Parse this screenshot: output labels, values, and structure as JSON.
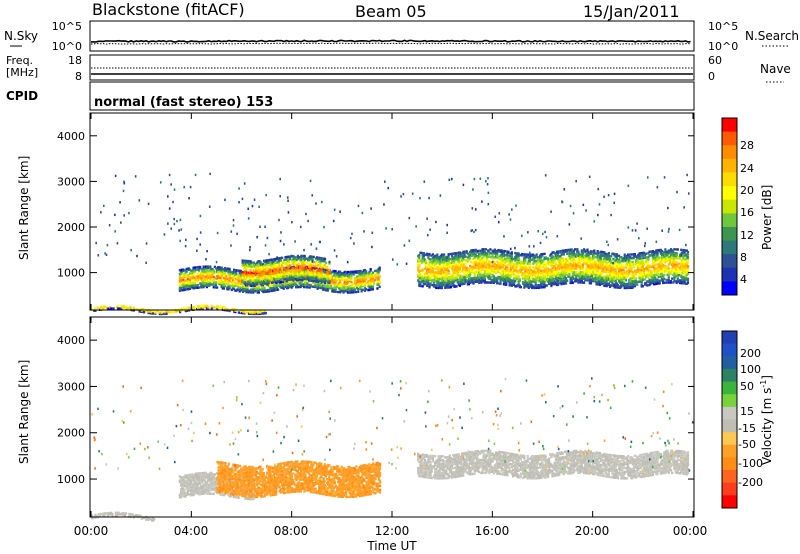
{
  "header": {
    "station": "Blackstone (fitACF)",
    "beam": "Beam 05",
    "date": "15/Jan/2011"
  },
  "sky_panel": {
    "left_label": "N.Sky",
    "right_label": "N.Search",
    "left_ticks": [
      "10^5",
      "10^0"
    ],
    "right_ticks": [
      "10^5",
      "10^0"
    ]
  },
  "freq_panel": {
    "left_label_1": "Freq.",
    "left_label_2": "[MHz]",
    "right_label": "Nave",
    "left_ticks": [
      "18",
      "8"
    ],
    "right_ticks": [
      "60",
      "0"
    ]
  },
  "cpid_panel": {
    "label": "CPID",
    "text": "normal (fast stereo) 153"
  },
  "x_axis": {
    "ticks": [
      "00:00",
      "04:00",
      "08:00",
      "12:00",
      "16:00",
      "20:00",
      "00:00"
    ],
    "label": "Time UT"
  },
  "power_panel": {
    "ylabel": "Slant Range [km]",
    "colorbar_label": "Power [dB]",
    "colorbar_ticks": [
      "28",
      "24",
      "20",
      "16",
      "12",
      "8",
      "4"
    ],
    "colors": [
      "#ff0000",
      "#ff5a00",
      "#ff8c00",
      "#ffb400",
      "#ffdc00",
      "#ffff00",
      "#c8e600",
      "#6ec83c",
      "#3c9650",
      "#2d7878",
      "#2d5096",
      "#1e32b4",
      "#0000ff"
    ]
  },
  "velocity_panel": {
    "ylabel": "Slant Range [km]",
    "colorbar_label": "Velocity [m s",
    "colorbar_sup": "-1",
    "colorbar_label_end": "]",
    "colorbar_ticks": [
      "200",
      "100",
      "50",
      "15",
      "-15",
      "-50",
      "-100",
      "-200"
    ],
    "colors": [
      "#2040b4",
      "#2050c8",
      "#2060a0",
      "#2d8264",
      "#3cb43c",
      "#78d23c",
      "#c8c8c0",
      "#bebeb4",
      "#ffc850",
      "#ffa028",
      "#ff8c14",
      "#ff641e",
      "#ff3c1e",
      "#ff0000"
    ]
  },
  "chart_data": [
    {
      "type": "line",
      "title": "Blackstone (fitACF)",
      "xlabel": "",
      "ylabel": "N.Sky",
      "x": [
        "00:00",
        "04:00",
        "08:00",
        "12:00",
        "16:00",
        "20:00",
        "00:00"
      ],
      "y_scale": "log",
      "ylim": [
        1,
        100000
      ],
      "series": [
        {
          "name": "N.Sky",
          "values": [
            30,
            30,
            35,
            35,
            32,
            30,
            30
          ]
        },
        {
          "name": "N.Search",
          "values": [
            10,
            10,
            12,
            12,
            11,
            10,
            10
          ]
        }
      ]
    },
    {
      "type": "line",
      "xlabel": "",
      "ylabel": "Freq. [MHz]",
      "x": [
        "00:00",
        "04:00",
        "08:00",
        "12:00",
        "16:00",
        "20:00",
        "00:00"
      ],
      "ylim": [
        8,
        18
      ],
      "y2label": "Nave",
      "y2lim": [
        0,
        60
      ],
      "series": [
        {
          "name": "Freq.",
          "values": [
            10.5,
            10.5,
            10.5,
            10.5,
            10.5,
            10.5,
            10.5
          ]
        },
        {
          "name": "Nave",
          "values": [
            30,
            30,
            30,
            30,
            30,
            30,
            30
          ]
        }
      ]
    },
    {
      "type": "heatmap",
      "xlabel": "",
      "ylabel": "Slant Range [km]",
      "xlim": [
        0,
        24
      ],
      "ylim": [
        180,
        4500
      ],
      "colorbar": "Power [dB]",
      "clim": [
        0,
        30
      ],
      "scatter_bands": [
        {
          "t_start": 3.5,
          "t_end": 11.5,
          "r_low": 650,
          "r_high": 1100,
          "peak_db": 26,
          "note": "range-time band of backscatter"
        },
        {
          "t_start": 6.0,
          "t_end": 9.5,
          "r_low": 800,
          "r_high": 1350,
          "peak_db": 28
        },
        {
          "t_start": 13.0,
          "t_end": 23.8,
          "r_low": 750,
          "r_high": 1500,
          "peak_db": 24
        },
        {
          "t_start": 0.0,
          "t_end": 7.0,
          "r_low": 180,
          "r_high": 260,
          "peak_db": 28
        }
      ]
    },
    {
      "type": "heatmap",
      "xlabel": "Time UT",
      "ylabel": "Slant Range [km]",
      "xlim": [
        0,
        24
      ],
      "ylim": [
        180,
        4500
      ],
      "colorbar": "Velocity [m s-1]",
      "clim": [
        -200,
        200
      ],
      "scatter_bands": [
        {
          "t_start": 3.5,
          "t_end": 6.5,
          "r_low": 650,
          "r_high": 1100,
          "velocity": 0
        },
        {
          "t_start": 5.0,
          "t_end": 11.5,
          "r_low": 700,
          "r_high": 1350,
          "velocity": -80
        },
        {
          "t_start": 13.0,
          "t_end": 23.8,
          "r_low": 1100,
          "r_high": 1600,
          "velocity": 0
        },
        {
          "t_start": 0.0,
          "t_end": 2.5,
          "r_low": 180,
          "r_high": 260,
          "velocity": 0
        }
      ]
    }
  ]
}
